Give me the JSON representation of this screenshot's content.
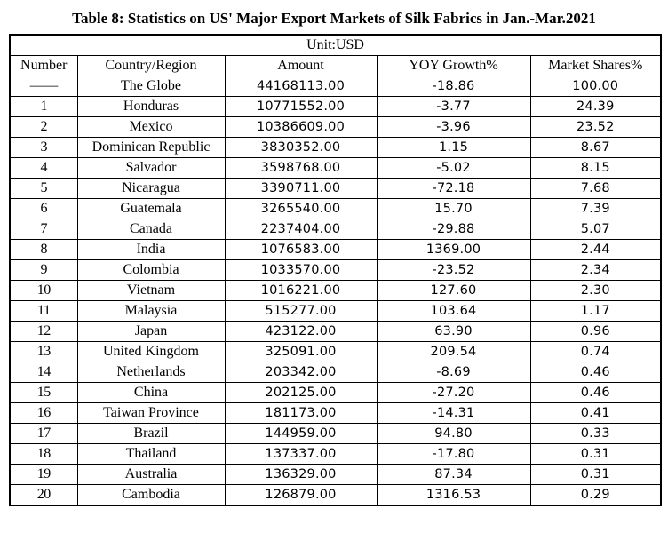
{
  "title": "Table 8: Statistics on US' Major Export Markets of Silk Fabrics in Jan.-Mar.2021",
  "unit_label": "Unit:USD",
  "table": {
    "columns": [
      "Number",
      "Country/Region",
      "Amount",
      "YOY Growth%",
      "Market Shares%"
    ],
    "rows": [
      [
        "——",
        "The Globe",
        "44168113.00",
        "-18.86",
        "100.00"
      ],
      [
        "1",
        "Honduras",
        "10771552.00",
        "-3.77",
        "24.39"
      ],
      [
        "2",
        "Mexico",
        "10386609.00",
        "-3.96",
        "23.52"
      ],
      [
        "3",
        "Dominican Republic",
        "3830352.00",
        "1.15",
        "8.67"
      ],
      [
        "4",
        "Salvador",
        "3598768.00",
        "-5.02",
        "8.15"
      ],
      [
        "5",
        "Nicaragua",
        "3390711.00",
        "-72.18",
        "7.68"
      ],
      [
        "6",
        "Guatemala",
        "3265540.00",
        "15.70",
        "7.39"
      ],
      [
        "7",
        "Canada",
        "2237404.00",
        "-29.88",
        "5.07"
      ],
      [
        "8",
        "India",
        "1076583.00",
        "1369.00",
        "2.44"
      ],
      [
        "9",
        "Colombia",
        "1033570.00",
        "-23.52",
        "2.34"
      ],
      [
        "10",
        "Vietnam",
        "1016221.00",
        "127.60",
        "2.30"
      ],
      [
        "11",
        "Malaysia",
        "515277.00",
        "103.64",
        "1.17"
      ],
      [
        "12",
        "Japan",
        "423122.00",
        "63.90",
        "0.96"
      ],
      [
        "13",
        "United Kingdom",
        "325091.00",
        "209.54",
        "0.74"
      ],
      [
        "14",
        "Netherlands",
        "203342.00",
        "-8.69",
        "0.46"
      ],
      [
        "15",
        "China",
        "202125.00",
        "-27.20",
        "0.46"
      ],
      [
        "16",
        "Taiwan Province",
        "181173.00",
        "-14.31",
        "0.41"
      ],
      [
        "17",
        "Brazil",
        "144959.00",
        "94.80",
        "0.33"
      ],
      [
        "18",
        "Thailand",
        "137337.00",
        "-17.80",
        "0.31"
      ],
      [
        "19",
        "Australia",
        "136329.00",
        "87.34",
        "0.31"
      ],
      [
        "20",
        "Cambodia",
        "126879.00",
        "1316.53",
        "0.29"
      ]
    ]
  }
}
